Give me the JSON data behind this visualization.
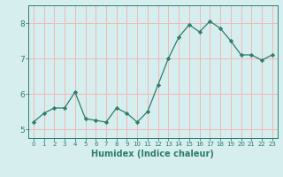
{
  "x": [
    0,
    1,
    2,
    3,
    4,
    5,
    6,
    7,
    8,
    9,
    10,
    11,
    12,
    13,
    14,
    15,
    16,
    17,
    18,
    19,
    20,
    21,
    22,
    23
  ],
  "y": [
    5.2,
    5.45,
    5.6,
    5.6,
    6.05,
    5.3,
    5.25,
    5.2,
    5.6,
    5.45,
    5.2,
    5.5,
    6.25,
    7.0,
    7.6,
    7.95,
    7.75,
    8.05,
    7.85,
    7.5,
    7.1,
    7.1,
    6.95,
    7.1
  ],
  "xlabel": "Humidex (Indice chaleur)",
  "xlim": [
    -0.5,
    23.5
  ],
  "ylim": [
    4.75,
    8.5
  ],
  "yticks": [
    5,
    6,
    7,
    8
  ],
  "xticks": [
    0,
    1,
    2,
    3,
    4,
    5,
    6,
    7,
    8,
    9,
    10,
    11,
    12,
    13,
    14,
    15,
    16,
    17,
    18,
    19,
    20,
    21,
    22,
    23
  ],
  "line_color": "#2e7d6e",
  "marker_color": "#2e7d6e",
  "bg_color": "#d6eeee",
  "grid_color": "#f0b8b8",
  "axis_color": "#2e7d6e",
  "xlabel_fontsize": 7,
  "xtick_fontsize": 5,
  "ytick_fontsize": 6.5
}
